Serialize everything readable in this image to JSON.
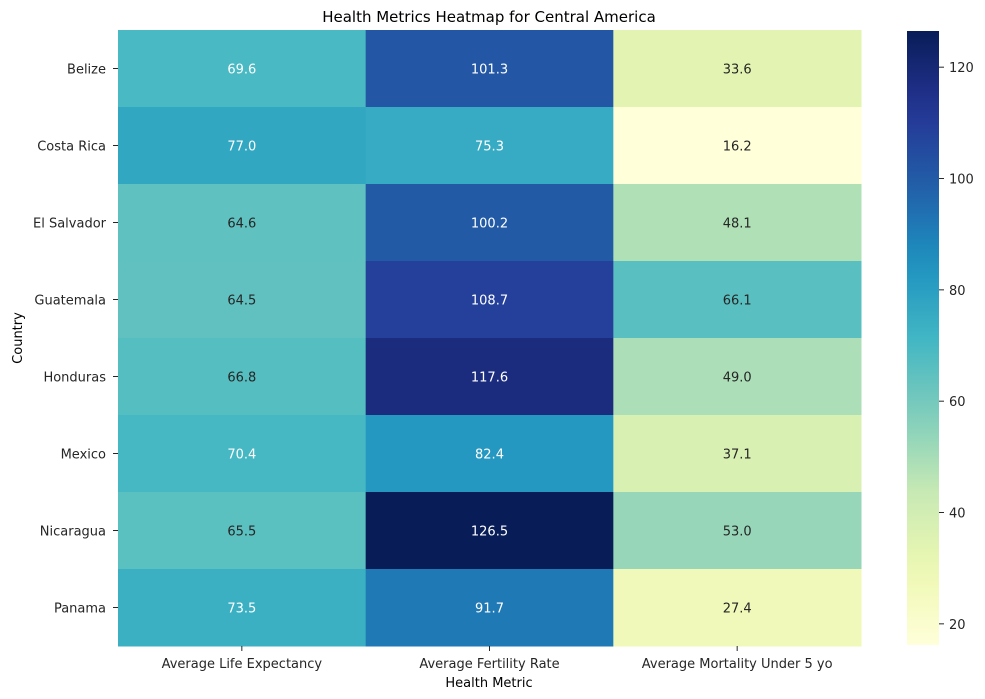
{
  "chart_data": {
    "type": "heatmap",
    "title": "Health Metrics Heatmap for Central America",
    "xlabel": "Health Metric",
    "ylabel": "Country",
    "x": [
      "Average Life Expectancy",
      "Average Fertility Rate",
      "Average Mortality Under 5 yo"
    ],
    "y": [
      "Belize",
      "Costa Rica",
      "El Salvador",
      "Guatemala",
      "Honduras",
      "Mexico",
      "Nicaragua",
      "Panama"
    ],
    "values": [
      [
        69.6,
        101.3,
        33.6
      ],
      [
        77.0,
        75.3,
        16.2
      ],
      [
        64.6,
        100.2,
        48.1
      ],
      [
        64.5,
        108.7,
        66.1
      ],
      [
        66.8,
        117.6,
        49.0
      ],
      [
        70.4,
        82.4,
        37.1
      ],
      [
        65.5,
        126.5,
        53.0
      ],
      [
        73.5,
        91.7,
        27.4
      ]
    ],
    "colorscale": "YlGnBu",
    "vmin": 16.2,
    "vmax": 126.5,
    "colorbar_ticks": [
      20,
      40,
      60,
      80,
      100,
      120
    ]
  }
}
